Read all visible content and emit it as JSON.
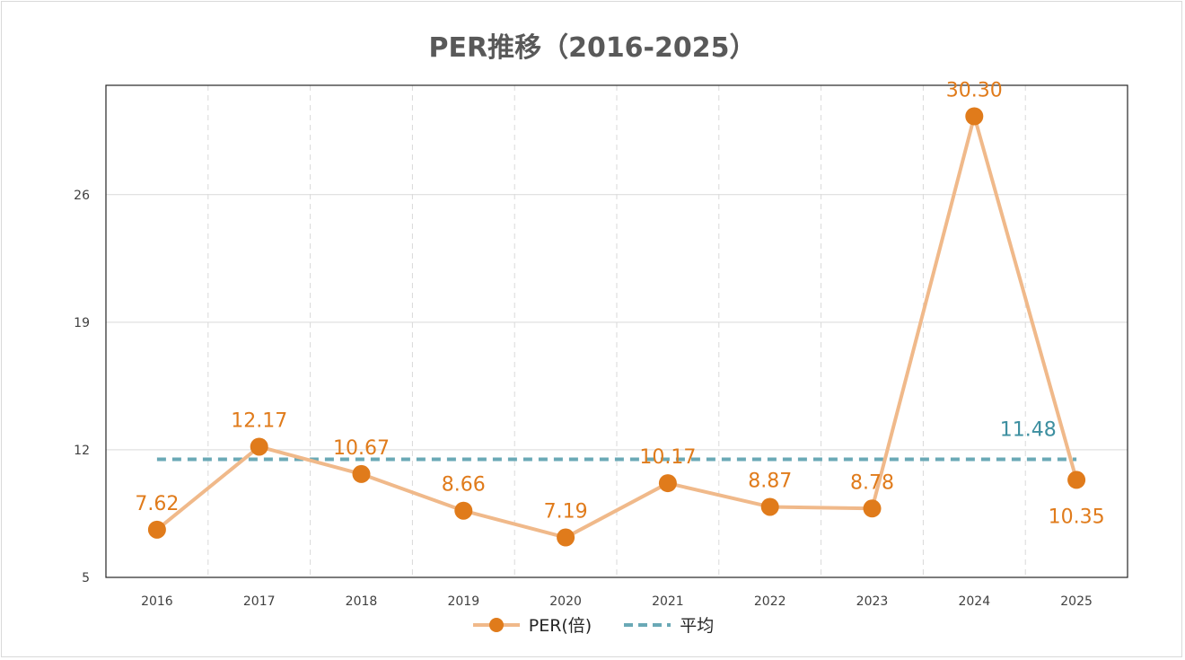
{
  "colors": {
    "series_line": "#f0b98a",
    "series_marker": "#e07b1b",
    "average_line": "#6aa9b6",
    "average_label": "#3d8fa0",
    "grid": "#d9d9d9",
    "axis": "#262626"
  },
  "legend": {
    "series_label": "PER(倍)",
    "average_label": "平均"
  },
  "chart_data": {
    "type": "line",
    "title": "PER推移（2016-2025）",
    "xlabel": "",
    "ylabel": "",
    "categories": [
      "2016",
      "2017",
      "2018",
      "2019",
      "2020",
      "2021",
      "2022",
      "2023",
      "2024",
      "2025"
    ],
    "series": [
      {
        "name": "PER(倍)",
        "values": [
          7.62,
          12.17,
          10.67,
          8.66,
          7.19,
          10.17,
          8.87,
          8.78,
          30.3,
          10.35
        ],
        "labels": [
          "7.62",
          "12.17",
          "10.67",
          "8.66",
          "7.19",
          "10.17",
          "8.87",
          "8.78",
          "30.30",
          "10.35"
        ]
      },
      {
        "name": "平均",
        "values": [
          11.48,
          11.48,
          11.48,
          11.48,
          11.48,
          11.48,
          11.48,
          11.48,
          11.48,
          11.48
        ],
        "label": "11.48"
      }
    ],
    "yticks": [
      5,
      12,
      19,
      26
    ],
    "ylim": [
      5,
      32
    ],
    "grid": true,
    "legend_position": "bottom"
  }
}
